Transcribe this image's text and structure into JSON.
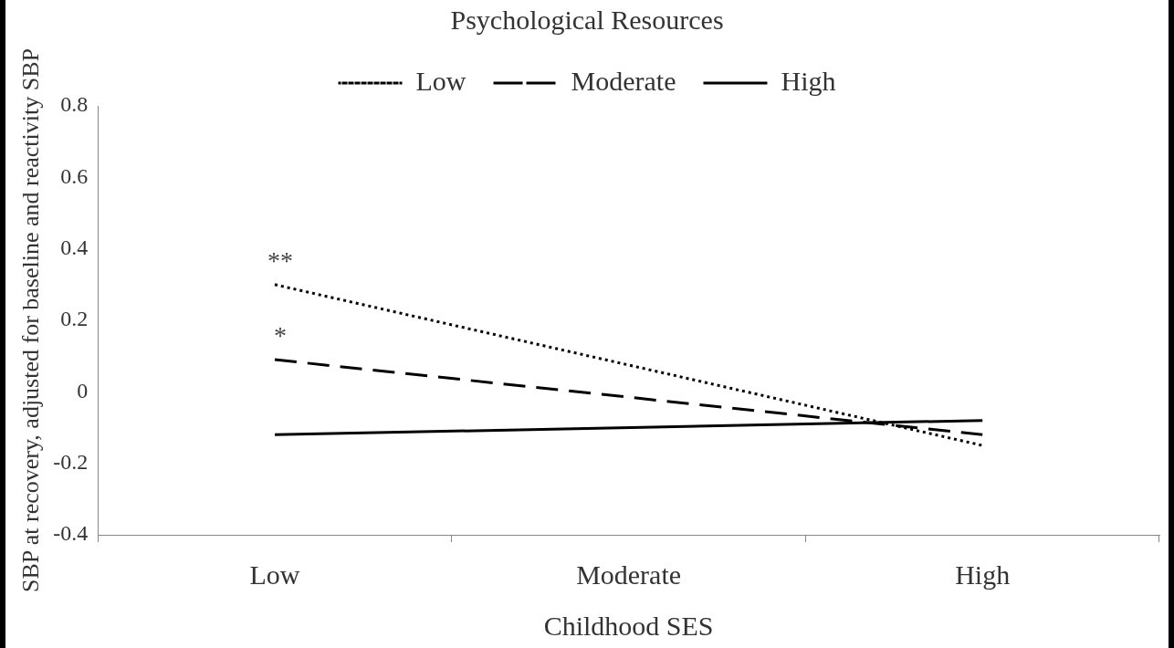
{
  "chart_data": {
    "type": "line",
    "title": "Psychological Resources",
    "xlabel": "Childhood SES",
    "ylabel": "SBP at recovery, adjusted for baseline and reactivity SBP",
    "categories": [
      "Low",
      "Moderate",
      "High"
    ],
    "series": [
      {
        "name": "Low",
        "color": "#000000",
        "line_style": "dotted",
        "values": [
          0.3,
          null,
          -0.15
        ]
      },
      {
        "name": "Moderate",
        "color": "#000000",
        "line_style": "dashed",
        "values": [
          0.09,
          null,
          -0.12
        ]
      },
      {
        "name": "High",
        "color": "#000000",
        "line_style": "solid",
        "values": [
          -0.12,
          null,
          -0.08
        ]
      }
    ],
    "ylim": [
      -0.4,
      0.8
    ],
    "yticks": [
      -0.4,
      -0.2,
      0,
      0.2,
      0.4,
      0.6,
      0.8
    ],
    "grid": false,
    "legend": "top",
    "marker": "none",
    "annotations": [
      "**",
      "*"
    ]
  }
}
